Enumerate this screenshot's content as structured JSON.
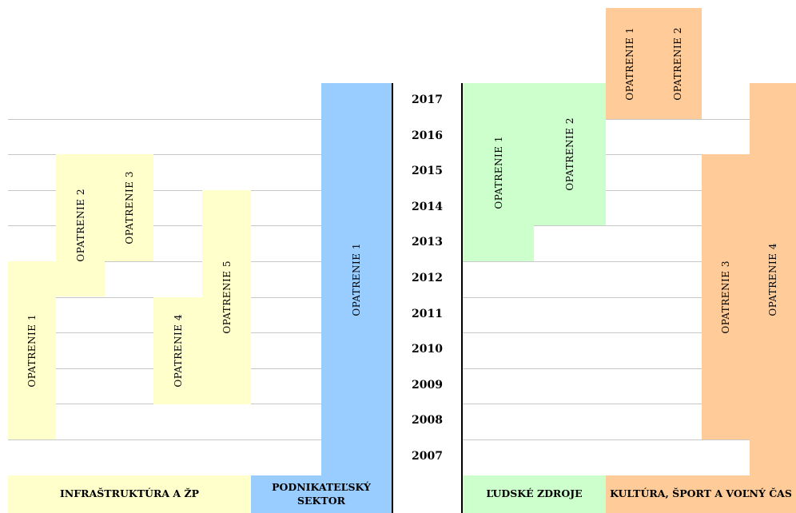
{
  "years": [
    "2017",
    "2016",
    "2015",
    "2014",
    "2013",
    "2012",
    "2011",
    "2010",
    "2009",
    "2008",
    "2007"
  ],
  "groups": [
    {
      "label": "INFRAŠTRUKTÚRA A ŽP",
      "color": "#ffffcc",
      "measures": [
        {
          "label": "OPATRENIE 1",
          "years": [
            2008,
            2012
          ]
        },
        {
          "label": "OPATRENIE 2",
          "years": [
            2012,
            2015
          ]
        },
        {
          "label": "OPATRENIE 3",
          "years": [
            2013,
            2015
          ]
        },
        {
          "label": "OPATRENIE 4",
          "years": [
            2009,
            2011
          ]
        },
        {
          "label": "OPATRENIE 5",
          "years": [
            2009,
            2014
          ]
        }
      ]
    },
    {
      "label": "PODNIKATEĽSKÝ SEKTOR",
      "color": "#99ccff",
      "measures": [
        {
          "label": "OPATRENIE 1",
          "years": [
            2007,
            2017
          ]
        }
      ]
    },
    {
      "label": "ĽUDSKÉ ZDROJE",
      "color": "#ccffcc",
      "measures": [
        {
          "label": "OPATRENIE 1",
          "years": [
            2013,
            2017
          ]
        },
        {
          "label": "OPATRENIE 2",
          "years": [
            2014,
            2017
          ]
        }
      ]
    },
    {
      "label": "KULTÚRA, ŠPORT A VOĽNÝ ČAS",
      "color": "#ffcc99",
      "measures": [
        {
          "label": "OPATRENIE 1",
          "years": [
            2017,
            2017
          ]
        },
        {
          "label": "OPATRENIE 2",
          "years": [
            2017,
            2017
          ]
        },
        {
          "label": "OPATRENIE 3",
          "years": [
            2008,
            2015
          ]
        },
        {
          "label": "OPATRENIE 4",
          "years": [
            2007,
            2017
          ]
        }
      ]
    }
  ]
}
